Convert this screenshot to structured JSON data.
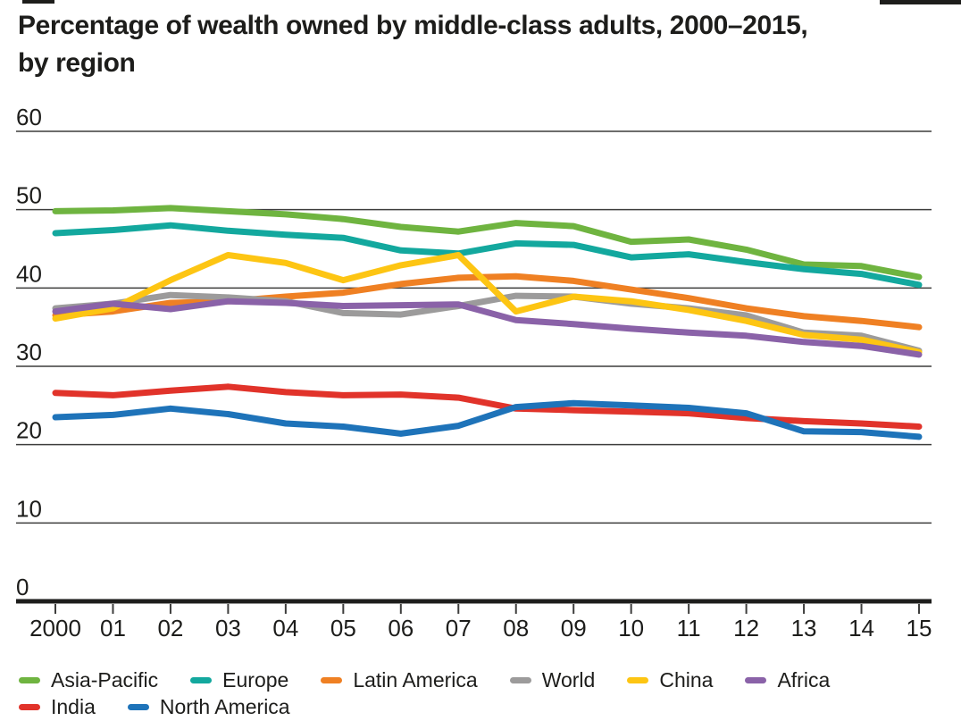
{
  "title": {
    "line1": "Percentage of wealth owned by middle-class adults, 2000–2015,",
    "line2": "by region"
  },
  "chart_data": {
    "type": "line",
    "title": "Percentage of wealth owned by middle-class adults, 2000–2015, by region",
    "xlabel": "",
    "ylabel": "",
    "x_labels": [
      "2000",
      "01",
      "02",
      "03",
      "04",
      "05",
      "06",
      "07",
      "08",
      "09",
      "10",
      "11",
      "12",
      "13",
      "14",
      "15"
    ],
    "yticks": [
      0,
      10,
      20,
      30,
      40,
      50,
      60
    ],
    "ylim": [
      0,
      60
    ],
    "grid": "horizontal",
    "legend_position": "bottom",
    "legend_row_split": 6,
    "axis_color": "#1d1d1b",
    "grid_color": "#3d3d3c",
    "series": [
      {
        "name": "Asia-Pacific",
        "color": "#6fb440",
        "values": [
          49.8,
          49.9,
          50.2,
          49.8,
          49.4,
          48.8,
          47.8,
          47.2,
          48.3,
          47.9,
          45.9,
          46.2,
          44.9,
          43.0,
          42.8,
          41.4
        ]
      },
      {
        "name": "Europe",
        "color": "#13a89e",
        "values": [
          47.0,
          47.4,
          48.0,
          47.3,
          46.8,
          46.4,
          44.8,
          44.4,
          45.7,
          45.5,
          43.9,
          44.3,
          43.3,
          42.4,
          41.8,
          40.4
        ]
      },
      {
        "name": "Latin America",
        "color": "#ef8023",
        "values": [
          36.5,
          37.0,
          38.1,
          38.3,
          38.9,
          39.4,
          40.5,
          41.3,
          41.5,
          40.9,
          39.8,
          38.7,
          37.4,
          36.4,
          35.8,
          35.0
        ]
      },
      {
        "name": "World",
        "color": "#9c9b9b",
        "values": [
          37.4,
          38.0,
          39.1,
          38.8,
          38.3,
          36.8,
          36.6,
          37.7,
          39.0,
          38.9,
          38.0,
          37.4,
          36.5,
          34.3,
          33.9,
          32.0
        ]
      },
      {
        "name": "China",
        "color": "#fdc513",
        "values": [
          36.1,
          37.4,
          41.0,
          44.2,
          43.2,
          41.0,
          42.9,
          44.2,
          37.0,
          38.9,
          38.3,
          37.2,
          35.8,
          34.0,
          33.4,
          31.8
        ]
      },
      {
        "name": "Africa",
        "color": "#8a62a8",
        "values": [
          37.0,
          38.0,
          37.3,
          38.3,
          38.1,
          37.7,
          37.8,
          37.9,
          35.9,
          35.4,
          34.8,
          34.3,
          33.9,
          33.1,
          32.6,
          31.5
        ]
      },
      {
        "name": "India",
        "color": "#e1332a",
        "values": [
          26.6,
          26.3,
          26.9,
          27.4,
          26.7,
          26.3,
          26.4,
          26.0,
          24.6,
          24.4,
          24.2,
          24.0,
          23.4,
          23.0,
          22.7,
          22.3
        ]
      },
      {
        "name": "North America",
        "color": "#1e73b9",
        "values": [
          23.5,
          23.8,
          24.6,
          23.9,
          22.7,
          22.3,
          21.4,
          22.4,
          24.8,
          25.3,
          25.0,
          24.7,
          24.0,
          21.7,
          21.6,
          21.0
        ]
      }
    ]
  }
}
